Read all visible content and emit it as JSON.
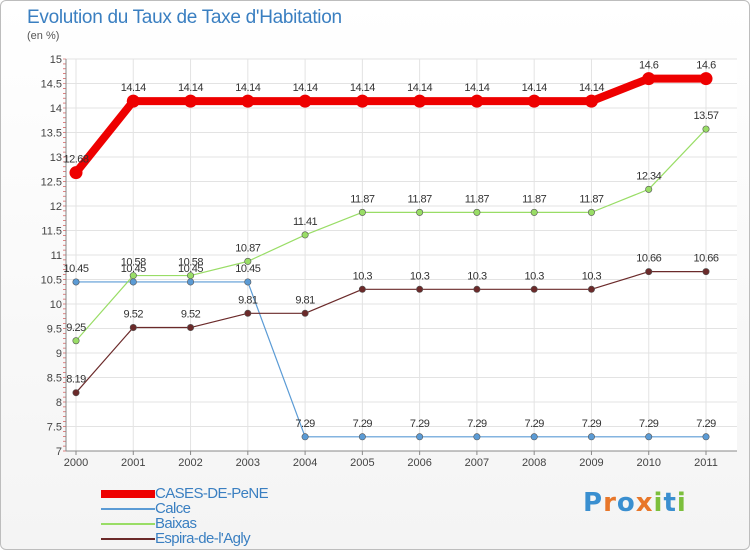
{
  "header": {
    "title": "Evolution du Taux de Taxe d'Habitation",
    "subtitle": "(en %)"
  },
  "chart_data": {
    "type": "line",
    "title": "Evolution du Taux de Taxe d'Habitation",
    "ylabel": "(en %)",
    "xlabel": "",
    "ylim": [
      7,
      15
    ],
    "y_ticks": [
      7,
      7.5,
      8,
      8.5,
      9,
      9.5,
      10,
      10.5,
      11,
      11.5,
      12,
      12.5,
      13,
      13.5,
      14,
      14.5,
      15
    ],
    "x": [
      "2000",
      "2001",
      "2002",
      "2003",
      "2004",
      "2005",
      "2006",
      "2007",
      "2008",
      "2009",
      "2010",
      "2011"
    ],
    "grid": true,
    "series": [
      {
        "name": "CASES-DE-PeNE",
        "color": "#ee0000",
        "values": [
          12.68,
          14.14,
          14.14,
          14.14,
          14.14,
          14.14,
          14.14,
          14.14,
          14.14,
          14.14,
          14.6,
          14.6
        ],
        "labels": [
          "12.68",
          "14.14",
          "14.14",
          "14.14",
          "14.14",
          "14.14",
          "14.14",
          "14.14",
          "14.14",
          "14.14",
          "14.6",
          "14.6"
        ]
      },
      {
        "name": "Calce",
        "color": "#5b9bd5",
        "values": [
          10.45,
          10.45,
          10.45,
          10.45,
          7.29,
          7.29,
          7.29,
          7.29,
          7.29,
          7.29,
          7.29,
          7.29
        ],
        "labels": [
          "10.45",
          "10.45",
          "10.45",
          "10.45",
          "7.29",
          "7.29",
          "7.29",
          "7.29",
          "7.29",
          "7.29",
          "7.29",
          "7.29"
        ]
      },
      {
        "name": "Baixas",
        "color": "#99dd66",
        "values": [
          9.25,
          10.58,
          10.58,
          10.87,
          11.41,
          11.87,
          11.87,
          11.87,
          11.87,
          11.87,
          12.34,
          13.57
        ],
        "labels": [
          "9.25",
          "10.58",
          "10.58",
          "10.87",
          "11.41",
          "11.87",
          "11.87",
          "11.87",
          "11.87",
          "11.87",
          "12.34",
          "13.57"
        ]
      },
      {
        "name": "Espira-de-l'Agly",
        "color": "#6b2a2a",
        "values": [
          8.19,
          9.52,
          9.52,
          9.81,
          9.81,
          10.3,
          10.3,
          10.3,
          10.3,
          10.3,
          10.66,
          10.66
        ],
        "labels": [
          "8.19",
          "9.52",
          "9.52",
          "9.81",
          "9.81",
          "10.3",
          "10.3",
          "10.3",
          "10.3",
          "10.3",
          "10.66",
          "10.66"
        ]
      }
    ],
    "legend_position": "bottom-left"
  },
  "logo": {
    "text": [
      "P",
      "r",
      "o",
      "x",
      "i",
      "t",
      "i"
    ],
    "colors": [
      "#3a8fd0",
      "#e8772a",
      "#3a8fd0",
      "#e8772a",
      "#7cbf3c",
      "#3a8fd0",
      "#7cbf3c"
    ]
  }
}
